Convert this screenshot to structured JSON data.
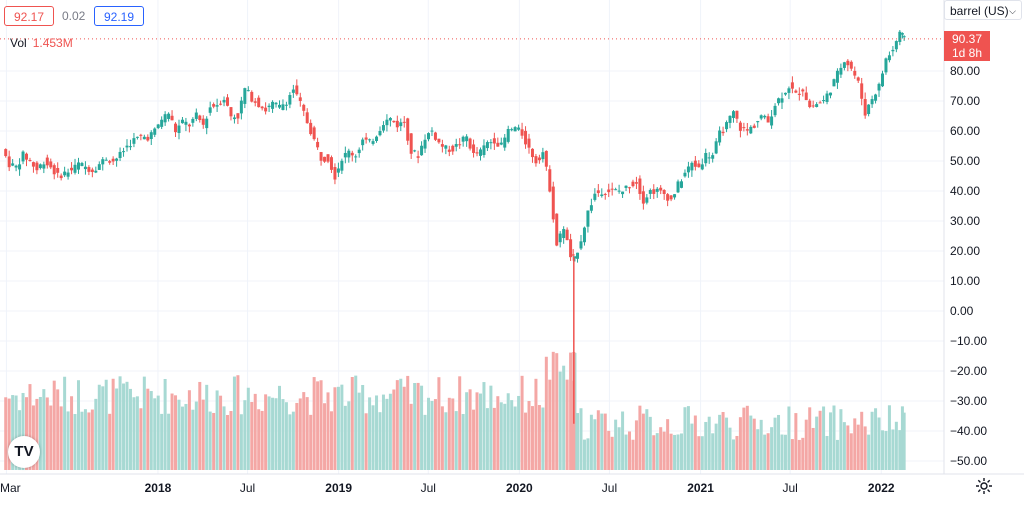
{
  "header": {
    "bid": "92.17",
    "spread": "0.02",
    "ask": "92.19",
    "volume_label": "Vol",
    "volume_value": "1.453M",
    "unit_select": "barrel (US)",
    "price_tag_price": "90.37",
    "price_tag_countdown": "1d 8h"
  },
  "icons": {
    "logo": "tradingview-logo-icon",
    "settings": "gear-icon",
    "dropdown": "chevron-down-icon"
  },
  "colors": {
    "up": "#26a69a",
    "down": "#ef5350",
    "up_vol": "#a7d9d3",
    "down_vol": "#f4a7a5",
    "grid": "#f0f3fa"
  },
  "chart_data": {
    "type": "candlestick",
    "title": "",
    "xlabel": "",
    "ylabel": "",
    "ylim": [
      -55,
      100
    ],
    "y_ticks": [
      80,
      70,
      60,
      50,
      40,
      30,
      20,
      10,
      0,
      -10,
      -20,
      -30,
      -40,
      -50
    ],
    "y_tick_labels": [
      "80.00",
      "70.00",
      "60.00",
      "50.00",
      "40.00",
      "30.00",
      "20.00",
      "10.00",
      "0.00",
      "−10.00",
      "−20.00",
      "−30.00",
      "−40.00",
      "−50.00"
    ],
    "x_tick_labels": [
      "Mar",
      "2018",
      "Jul",
      "2019",
      "Jul",
      "2020",
      "Jul",
      "2021",
      "Jul",
      "2022"
    ],
    "x_tick_dates": [
      "2017-03",
      "2018-01",
      "2018-07",
      "2019-01",
      "2019-07",
      "2020-01",
      "2020-07",
      "2021-01",
      "2021-07",
      "2022-01"
    ],
    "grid": true,
    "last_price": 90.37,
    "price_points": [
      [
        "2017-02-24",
        54
      ],
      [
        "2017-03-10",
        49
      ],
      [
        "2017-03-24",
        48
      ],
      [
        "2017-04-07",
        52
      ],
      [
        "2017-04-21",
        50
      ],
      [
        "2017-05-05",
        47
      ],
      [
        "2017-05-19",
        50
      ],
      [
        "2017-06-02",
        48
      ],
      [
        "2017-06-16",
        45
      ],
      [
        "2017-06-30",
        46
      ],
      [
        "2017-07-14",
        47
      ],
      [
        "2017-07-28",
        49
      ],
      [
        "2017-08-11",
        48
      ],
      [
        "2017-08-25",
        47
      ],
      [
        "2017-09-08",
        49
      ],
      [
        "2017-09-22",
        51
      ],
      [
        "2017-10-06",
        50
      ],
      [
        "2017-10-20",
        52
      ],
      [
        "2017-11-03",
        55
      ],
      [
        "2017-11-17",
        57
      ],
      [
        "2017-12-01",
        58
      ],
      [
        "2017-12-15",
        58
      ],
      [
        "2017-12-29",
        60
      ],
      [
        "2018-01-12",
        64
      ],
      [
        "2018-01-26",
        66
      ],
      [
        "2018-02-09",
        60
      ],
      [
        "2018-02-23",
        63
      ],
      [
        "2018-03-09",
        62
      ],
      [
        "2018-03-23",
        65
      ],
      [
        "2018-04-06",
        62
      ],
      [
        "2018-04-20",
        68
      ],
      [
        "2018-05-04",
        69
      ],
      [
        "2018-05-18",
        71
      ],
      [
        "2018-06-01",
        65
      ],
      [
        "2018-06-15",
        65
      ],
      [
        "2018-06-29",
        74
      ],
      [
        "2018-07-13",
        71
      ],
      [
        "2018-07-27",
        69
      ],
      [
        "2018-08-10",
        67
      ],
      [
        "2018-08-24",
        69
      ],
      [
        "2018-09-07",
        68
      ],
      [
        "2018-09-21",
        70
      ],
      [
        "2018-10-05",
        74
      ],
      [
        "2018-10-19",
        69
      ],
      [
        "2018-11-02",
        63
      ],
      [
        "2018-11-16",
        57
      ],
      [
        "2018-11-30",
        51
      ],
      [
        "2018-12-14",
        51
      ],
      [
        "2018-12-28",
        45
      ],
      [
        "2019-01-11",
        51
      ],
      [
        "2019-01-25",
        53
      ],
      [
        "2019-02-08",
        52
      ],
      [
        "2019-02-22",
        57
      ],
      [
        "2019-03-08",
        56
      ],
      [
        "2019-03-22",
        59
      ],
      [
        "2019-04-05",
        63
      ],
      [
        "2019-04-19",
        64
      ],
      [
        "2019-05-03",
        62
      ],
      [
        "2019-05-17",
        63
      ],
      [
        "2019-05-31",
        53
      ],
      [
        "2019-06-14",
        52
      ],
      [
        "2019-06-28",
        58
      ],
      [
        "2019-07-12",
        60
      ],
      [
        "2019-07-26",
        56
      ],
      [
        "2019-08-09",
        54
      ],
      [
        "2019-08-23",
        54
      ],
      [
        "2019-09-06",
        56
      ],
      [
        "2019-09-20",
        58
      ],
      [
        "2019-10-04",
        52
      ],
      [
        "2019-10-18",
        53
      ],
      [
        "2019-11-01",
        56
      ],
      [
        "2019-11-15",
        57
      ],
      [
        "2019-11-29",
        55
      ],
      [
        "2019-12-13",
        60
      ],
      [
        "2019-12-27",
        61
      ],
      [
        "2020-01-10",
        59
      ],
      [
        "2020-01-24",
        54
      ],
      [
        "2020-02-07",
        50
      ],
      [
        "2020-02-21",
        53
      ],
      [
        "2020-03-06",
        41
      ],
      [
        "2020-03-20",
        22
      ],
      [
        "2020-04-03",
        28
      ],
      [
        "2020-04-17",
        18
      ],
      [
        "2020-04-24",
        17
      ],
      [
        "2020-05-08",
        24
      ],
      [
        "2020-05-22",
        33
      ],
      [
        "2020-06-05",
        39
      ],
      [
        "2020-06-19",
        40
      ],
      [
        "2020-07-03",
        40
      ],
      [
        "2020-07-17",
        40
      ],
      [
        "2020-07-31",
        40
      ],
      [
        "2020-08-14",
        42
      ],
      [
        "2020-08-28",
        43
      ],
      [
        "2020-09-11",
        37
      ],
      [
        "2020-09-25",
        40
      ],
      [
        "2020-10-09",
        40
      ],
      [
        "2020-10-23",
        39
      ],
      [
        "2020-11-06",
        37
      ],
      [
        "2020-11-20",
        42
      ],
      [
        "2020-12-04",
        46
      ],
      [
        "2020-12-18",
        49
      ],
      [
        "2021-01-01",
        48
      ],
      [
        "2021-01-15",
        52
      ],
      [
        "2021-01-29",
        52
      ],
      [
        "2021-02-12",
        59
      ],
      [
        "2021-02-26",
        62
      ],
      [
        "2021-03-12",
        66
      ],
      [
        "2021-03-26",
        61
      ],
      [
        "2021-04-09",
        60
      ],
      [
        "2021-04-23",
        62
      ],
      [
        "2021-05-07",
        65
      ],
      [
        "2021-05-21",
        63
      ],
      [
        "2021-06-04",
        69
      ],
      [
        "2021-06-18",
        72
      ],
      [
        "2021-07-02",
        75
      ],
      [
        "2021-07-16",
        72
      ],
      [
        "2021-07-30",
        74
      ],
      [
        "2021-08-13",
        68
      ],
      [
        "2021-08-27",
        69
      ],
      [
        "2021-09-10",
        70
      ],
      [
        "2021-09-24",
        74
      ],
      [
        "2021-10-08",
        79
      ],
      [
        "2021-10-22",
        84
      ],
      [
        "2021-11-05",
        81
      ],
      [
        "2021-11-19",
        76
      ],
      [
        "2021-12-03",
        66
      ],
      [
        "2021-12-17",
        71
      ],
      [
        "2021-12-31",
        75
      ],
      [
        "2022-01-14",
        84
      ],
      [
        "2022-01-28",
        87
      ],
      [
        "2022-02-11",
        93
      ],
      [
        "2022-02-18",
        90.37
      ]
    ],
    "x_span": [
      "2017-02-20",
      "2022-02-22"
    ]
  }
}
